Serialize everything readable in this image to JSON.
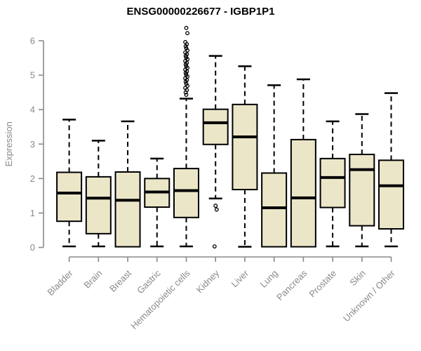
{
  "title": "ENSG00000226677 - IGBP1P1",
  "chart_data": {
    "type": "boxplot",
    "title": "ENSG00000226677 - IGBP1P1",
    "xlabel": "",
    "ylabel": "Expression",
    "ylim": [
      0,
      6.5
    ],
    "yticks": [
      0,
      1,
      2,
      3,
      4,
      5,
      6
    ],
    "grid": false,
    "legend": "none",
    "categories": [
      "Bladder",
      "Brain",
      "Breast",
      "Gastric",
      "Hematopoietic cells",
      "Kidney",
      "Liver",
      "Lung",
      "Pancreas",
      "Prostate",
      "Skin",
      "Unknown / Other"
    ],
    "series": [
      {
        "name": "Bladder",
        "low": 0.03,
        "q1": 0.76,
        "median": 1.58,
        "q3": 2.18,
        "high": 3.71,
        "outliers": []
      },
      {
        "name": "Brain",
        "low": 0.03,
        "q1": 0.4,
        "median": 1.43,
        "q3": 2.05,
        "high": 3.1,
        "outliers": []
      },
      {
        "name": "Breast",
        "low": 0.02,
        "q1": 0.02,
        "median": 1.37,
        "q3": 2.19,
        "high": 3.66,
        "outliers": []
      },
      {
        "name": "Gastric",
        "low": 0.03,
        "q1": 1.17,
        "median": 1.61,
        "q3": 2.0,
        "high": 2.58,
        "outliers": []
      },
      {
        "name": "Hematopoietic cells",
        "low": 0.03,
        "q1": 0.87,
        "median": 1.65,
        "q3": 2.29,
        "high": 4.32,
        "outliers": [
          6.37,
          6.22,
          5.96,
          5.9,
          5.84,
          5.78,
          5.72,
          5.66,
          5.61,
          5.56,
          5.51,
          5.46,
          5.41,
          5.36,
          5.31,
          5.26,
          5.21,
          5.16,
          5.11,
          5.06,
          5.01,
          4.96,
          4.91,
          4.86,
          4.81,
          4.75,
          4.69,
          4.63,
          4.57,
          4.5,
          4.43
        ]
      },
      {
        "name": "Kidney",
        "low": 1.42,
        "q1": 2.99,
        "median": 3.62,
        "q3": 4.01,
        "high": 5.56,
        "outliers": [
          1.21,
          1.1,
          0.03
        ]
      },
      {
        "name": "Liver",
        "low": 0.02,
        "q1": 1.68,
        "median": 3.21,
        "q3": 4.15,
        "high": 5.26,
        "outliers": []
      },
      {
        "name": "Lung",
        "low": 0.02,
        "q1": 0.02,
        "median": 1.15,
        "q3": 2.16,
        "high": 4.71,
        "outliers": []
      },
      {
        "name": "Pancreas",
        "low": 0.02,
        "q1": 0.02,
        "median": 1.44,
        "q3": 3.13,
        "high": 4.88,
        "outliers": []
      },
      {
        "name": "Prostate",
        "low": 0.03,
        "q1": 1.16,
        "median": 2.03,
        "q3": 2.58,
        "high": 3.66,
        "outliers": []
      },
      {
        "name": "Skin",
        "low": 0.03,
        "q1": 0.63,
        "median": 2.26,
        "q3": 2.7,
        "high": 3.87,
        "outliers": []
      },
      {
        "name": "Unknown / Other",
        "low": 0.03,
        "q1": 0.54,
        "median": 1.79,
        "q3": 2.53,
        "high": 4.48,
        "outliers": []
      }
    ],
    "style": {
      "box_fill": "#ECE6C9",
      "line_color": "#000000",
      "axis_color": "#8a8a8a",
      "title_color": "#000000",
      "background": "#ffffff"
    }
  }
}
